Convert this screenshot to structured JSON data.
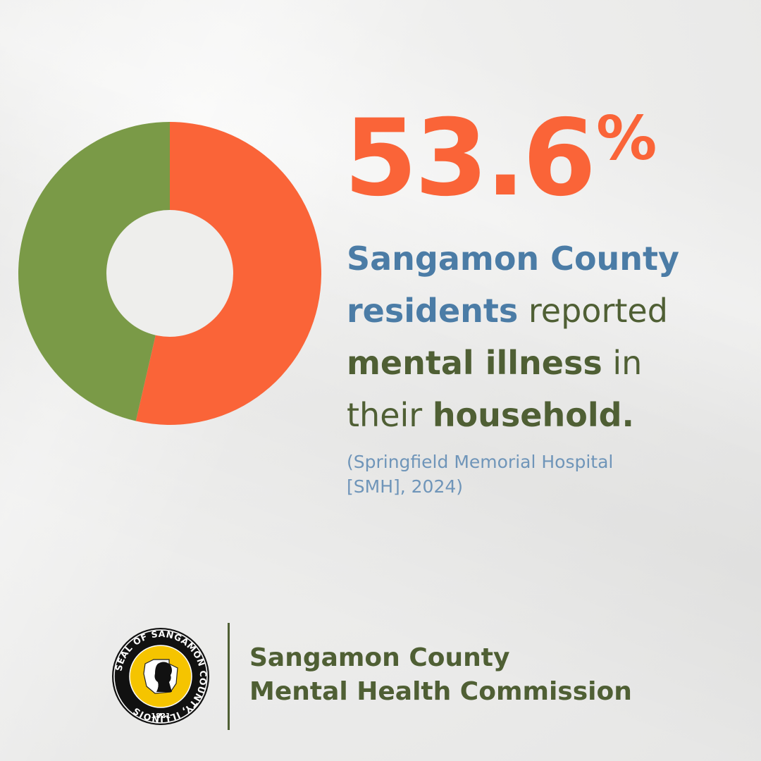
{
  "chart_data": {
    "type": "pie",
    "donut": true,
    "slices": [
      {
        "value": 53.6,
        "color": "#fa6438"
      },
      {
        "value": 46.4,
        "color": "#7a9a47"
      }
    ]
  },
  "stat": {
    "number": "53.6",
    "suffix": "%"
  },
  "headline": {
    "line1": "Sangamon County",
    "line2_bold": "residents",
    "line2_rest": " reported",
    "line3_bold": "mental illness",
    "line3_rest": " in",
    "line4_pre": "their ",
    "line4_bold": "household."
  },
  "source": {
    "line1": "(Springfield Memorial Hospital",
    "line2": "[SMH], 2024)"
  },
  "seal": {
    "ring_text": "SEAL OF SANGAMON COUNTY, ILLINOIS",
    "year": "1821"
  },
  "org": {
    "line1": "Sangamon County",
    "line2": "Mental Health Commission"
  },
  "colors": {
    "accent_orange": "#fa6438",
    "accent_green": "#7a9a47",
    "text_blue": "#4b7ca6",
    "text_green": "#4f5f34",
    "source_blue": "#6f95b9",
    "seal_yellow": "#f5c400"
  }
}
